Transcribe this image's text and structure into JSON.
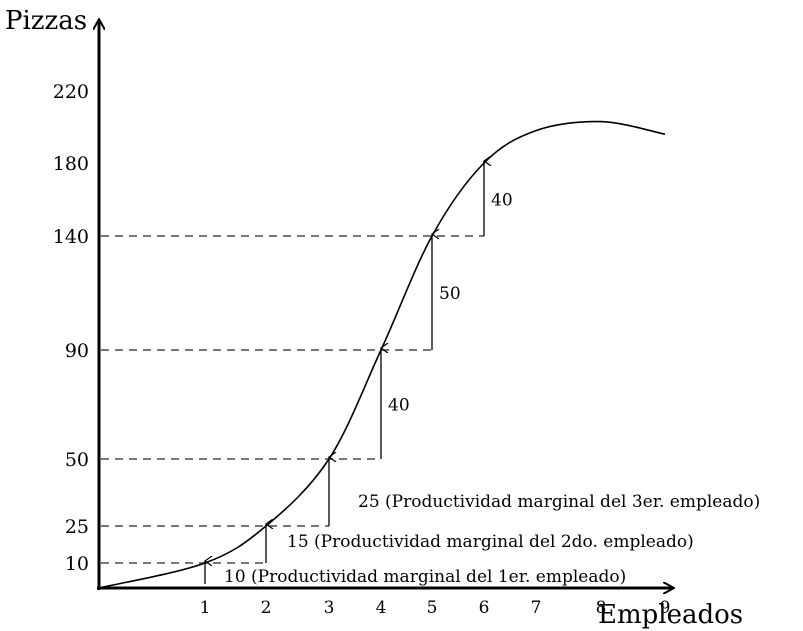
{
  "chart_data": {
    "type": "line",
    "title": "",
    "xlabel": "Empleados",
    "ylabel": "Pizzas",
    "x_ticks": [
      "1",
      "2",
      "3",
      "4",
      "5",
      "6",
      "7",
      "8",
      "9"
    ],
    "y_ticks": [
      "10",
      "25",
      "50",
      "90",
      "140",
      "180",
      "220"
    ],
    "xlim": [
      0,
      9.5
    ],
    "ylim": [
      0,
      230
    ],
    "grid": false,
    "series": [
      {
        "x": [
          0,
          1,
          2,
          3,
          4,
          5,
          6,
          7,
          8,
          9
        ],
        "y": [
          0,
          10,
          25,
          50,
          90,
          140,
          180,
          198,
          203,
          196
        ]
      }
    ],
    "reference_levels": [
      10,
      25,
      50,
      90,
      140
    ],
    "steps": [
      {
        "x": 1,
        "from": 0,
        "to": 10,
        "label": ""
      },
      {
        "x": 2,
        "from": 10,
        "to": 25,
        "label": ""
      },
      {
        "x": 3,
        "from": 25,
        "to": 50,
        "label": ""
      },
      {
        "x": 4,
        "from": 50,
        "to": 90,
        "label": "40"
      },
      {
        "x": 5,
        "from": 90,
        "to": 140,
        "label": "50"
      },
      {
        "x": 6,
        "from": 140,
        "to": 180,
        "label": "40"
      }
    ],
    "annotations": [
      "10 (Productividad marginal del 1er. empleado)",
      "15 (Productividad marginal del 2do. empleado)",
      "25 (Productividad marginal del 3er. empleado)"
    ],
    "line_color": "#000000",
    "dash_color": "#777777"
  }
}
